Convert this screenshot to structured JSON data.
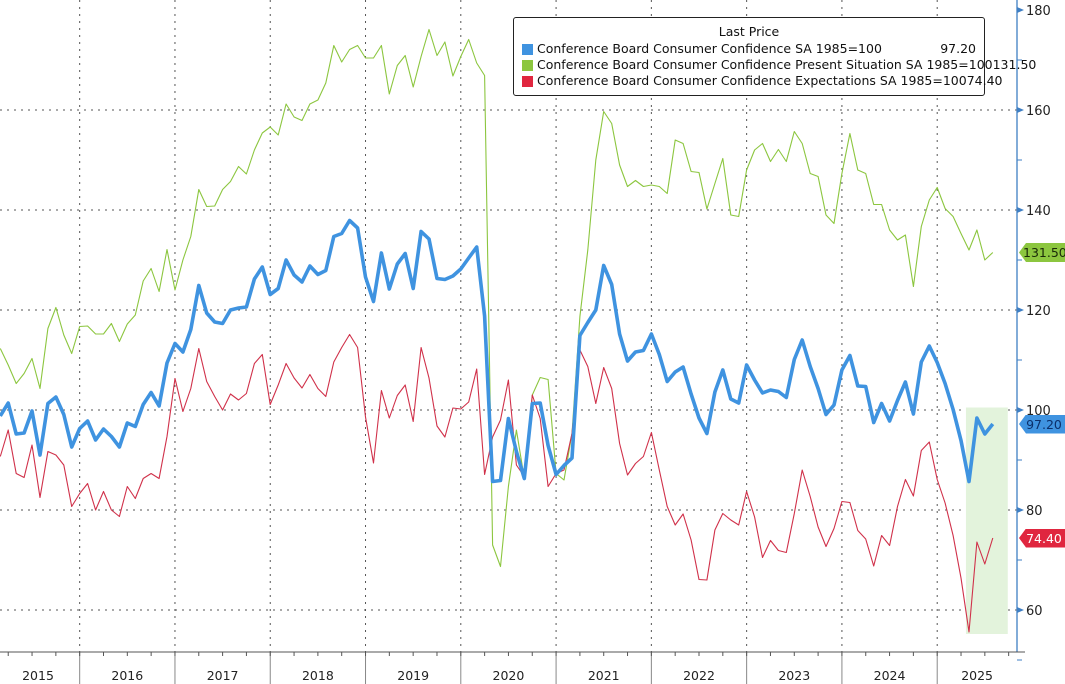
{
  "chart_data": {
    "type": "line",
    "title": "",
    "legend_title": "Last Price",
    "legend_position": "top-right",
    "xlabel": "",
    "ylabel": "",
    "ylim": [
      55,
      180
    ],
    "y_ticks": [
      180,
      160,
      140,
      120,
      100,
      80,
      60
    ],
    "x_tick_labels": [
      "2015",
      "2016",
      "2017",
      "2018",
      "2019",
      "2020",
      "2021",
      "2022",
      "2023",
      "2024",
      "2025"
    ],
    "grid": true,
    "start": "2015-02",
    "frequency": "monthly",
    "highlight_region": {
      "from": "2025-04",
      "to": "2025-07",
      "color": "#e3f3dc"
    },
    "series": [
      {
        "name": "Conference Board Consumer Confidence SA 1985=100",
        "last": "97.20",
        "color": "#3f93e0",
        "tag_text": "#0b2f6a",
        "values": [
          98.8,
          101.4,
          95.2,
          95.4,
          99.8,
          91.0,
          101.3,
          102.6,
          99.1,
          92.6,
          96.3,
          97.8,
          94.0,
          96.2,
          94.7,
          92.6,
          97.4,
          96.7,
          101.1,
          103.5,
          100.8,
          109.4,
          113.3,
          111.6,
          116.1,
          124.9,
          119.4,
          117.6,
          117.3,
          120.0,
          120.4,
          120.6,
          126.2,
          128.6,
          123.1,
          124.3,
          130.0,
          127.0,
          125.6,
          128.8,
          127.1,
          127.9,
          134.7,
          135.3,
          137.9,
          136.4,
          126.6,
          121.7,
          131.4,
          124.2,
          129.2,
          131.3,
          124.3,
          135.7,
          134.2,
          126.3,
          126.1,
          126.8,
          128.2,
          130.4,
          132.6,
          118.8,
          85.7,
          85.9,
          98.3,
          91.7,
          86.3,
          101.3,
          101.4,
          92.9,
          87.1,
          88.9,
          90.4,
          114.9,
          117.5,
          120.0,
          128.9,
          125.1,
          115.2,
          109.8,
          111.6,
          111.9,
          115.2,
          111.1,
          105.7,
          107.6,
          108.6,
          103.2,
          98.4,
          95.3,
          103.6,
          108.0,
          102.2,
          101.4,
          109.0,
          106.0,
          103.4,
          104.0,
          103.7,
          102.5,
          110.1,
          114.0,
          108.7,
          104.3,
          99.1,
          101.0,
          108.0,
          110.9,
          104.8,
          104.7,
          97.5,
          101.3,
          97.8,
          101.9,
          105.6,
          99.2,
          109.6,
          112.8,
          109.5,
          105.3,
          100.1,
          93.9,
          85.7,
          98.4,
          95.2,
          97.2
        ]
      },
      {
        "name": "Conference Board Consumer Confidence Present Situation SA 1985=100",
        "last": "131.50",
        "color": "#8cc63f",
        "tag_text": "#1a2a08",
        "values": [
          112.3,
          109,
          105.3,
          107.3,
          110.3,
          104.3,
          116.3,
          120.5,
          115,
          111.3,
          116.7,
          116.8,
          115.2,
          115.2,
          117.3,
          113.7,
          117.2,
          119,
          125.8,
          128.3,
          123.7,
          132.1,
          124,
          130,
          134.7,
          144.1,
          140.7,
          140.8,
          144.1,
          145.7,
          148.7,
          147.2,
          152,
          155.4,
          156.6,
          155,
          161.2,
          158.6,
          157.9,
          161.2,
          162,
          165.4,
          172.9,
          169.6,
          172.1,
          172.9,
          170.4,
          170.4,
          172.9,
          163.2,
          168.9,
          170.9,
          164.6,
          170.7,
          176.1,
          170.9,
          173.6,
          166.8,
          170.7,
          174.1,
          169.4,
          166.9,
          73,
          68.7,
          84.7,
          96,
          86.3,
          103,
          106.5,
          106.1,
          87.3,
          86,
          95.3,
          118.7,
          132,
          150,
          159.7,
          157.3,
          149,
          144.7,
          145.9,
          144.7,
          145,
          144.7,
          143.3,
          154,
          153.3,
          147.7,
          147.5,
          140.2,
          145.3,
          150.3,
          139,
          138.7,
          148,
          152,
          153.3,
          149.7,
          152.1,
          149.7,
          155.7,
          153.3,
          147.3,
          146.7,
          139,
          137.3,
          147.3,
          155.3,
          148,
          147.3,
          141.1,
          141.1,
          136,
          134,
          135,
          124.7,
          136.7,
          142,
          144.5,
          140.3,
          138.7,
          135.3,
          132,
          136,
          130,
          131.5
        ]
      },
      {
        "name": "Conference Board Consumer Confidence Expectations SA 1985=100",
        "last": "74.40",
        "color": "#d0314a",
        "tag_text": "#ffffff",
        "values": [
          90.7,
          96,
          87.3,
          86.5,
          93,
          82.5,
          91.7,
          91,
          89,
          80.7,
          83.3,
          85.3,
          80,
          83.7,
          80,
          78.7,
          84.7,
          82.3,
          86.3,
          87.3,
          86.3,
          94.7,
          106.3,
          99.7,
          104.3,
          112.3,
          105.7,
          102.7,
          100,
          103.2,
          102,
          103.3,
          109.3,
          111.1,
          101.1,
          105,
          109.3,
          106.4,
          104.4,
          107.1,
          104.3,
          102.7,
          109.6,
          112.5,
          115.1,
          112.5,
          98.6,
          89.4,
          103.9,
          98.4,
          102.9,
          105,
          97.7,
          112.5,
          106.4,
          96.8,
          94.6,
          100.4,
          100.2,
          101.6,
          108.2,
          87.1,
          94.6,
          98,
          106,
          89,
          86.7,
          103,
          98.3,
          84.7,
          87.3,
          88,
          95.3,
          112,
          108.7,
          101.3,
          108.5,
          104.3,
          93.3,
          87,
          89.3,
          90.7,
          95.5,
          88,
          80.7,
          77,
          79.2,
          74,
          66.1,
          66,
          76,
          79.3,
          78,
          77,
          83.7,
          78.6,
          70.5,
          73.9,
          71.9,
          71.5,
          79.3,
          88,
          82.7,
          76.6,
          72.7,
          76.3,
          81.7,
          81.5,
          75.9,
          74.2,
          68.8,
          74.9,
          72.9,
          80.7,
          86.1,
          82.8,
          91.9,
          93.6,
          86.1,
          81.4,
          74.9,
          66.4,
          55.6,
          73.6,
          69.2,
          74.4
        ]
      }
    ]
  }
}
